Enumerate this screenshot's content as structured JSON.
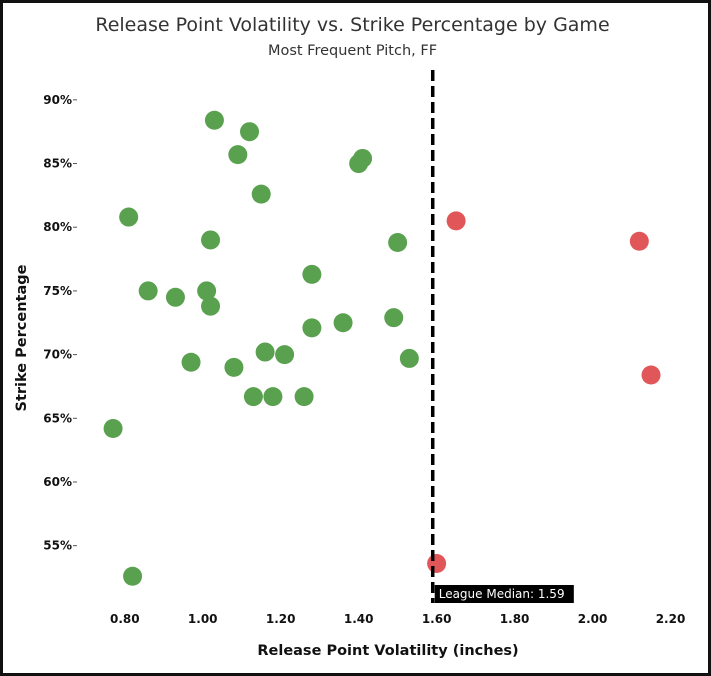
{
  "chart_data": {
    "type": "scatter",
    "title": "Release Point Volatility vs. Strike Percentage by Game",
    "subtitle": "Most Frequent Pitch, FF",
    "xlabel": "Release Point Volatility (inches)",
    "ylabel": "Strike Percentage",
    "xlim": [
      0.68,
      2.25
    ],
    "ylim": [
      50.5,
      92.5
    ],
    "x_ticks": [
      0.8,
      1.0,
      1.2,
      1.4,
      1.6,
      1.8,
      2.0,
      2.2
    ],
    "x_tick_labels": [
      "0.80",
      "1.00",
      "1.20",
      "1.40",
      "1.60",
      "1.80",
      "2.00",
      "2.20"
    ],
    "y_ticks": [
      55,
      60,
      65,
      70,
      75,
      80,
      85,
      90
    ],
    "y_tick_labels": [
      "55%",
      "60%",
      "65%",
      "70%",
      "75%",
      "80%",
      "85%",
      "90%"
    ],
    "grid": false,
    "colors": {
      "below_median": "#59a14f",
      "above_median": "#e15759",
      "median_line": "#000000"
    },
    "reference_line": {
      "x": 1.59,
      "label": "League Median: 1.59"
    },
    "points": [
      {
        "x": 1.03,
        "y": 88.4,
        "group": "below_median"
      },
      {
        "x": 1.12,
        "y": 87.5,
        "group": "below_median"
      },
      {
        "x": 1.09,
        "y": 85.7,
        "group": "below_median"
      },
      {
        "x": 1.41,
        "y": 85.4,
        "group": "below_median"
      },
      {
        "x": 1.4,
        "y": 85.0,
        "group": "below_median"
      },
      {
        "x": 1.15,
        "y": 82.6,
        "group": "below_median"
      },
      {
        "x": 0.81,
        "y": 80.8,
        "group": "below_median"
      },
      {
        "x": 1.02,
        "y": 79.0,
        "group": "below_median"
      },
      {
        "x": 1.5,
        "y": 78.8,
        "group": "below_median"
      },
      {
        "x": 1.28,
        "y": 76.3,
        "group": "below_median"
      },
      {
        "x": 0.86,
        "y": 75.0,
        "group": "below_median"
      },
      {
        "x": 1.01,
        "y": 75.0,
        "group": "below_median"
      },
      {
        "x": 0.93,
        "y": 74.5,
        "group": "below_median"
      },
      {
        "x": 1.02,
        "y": 73.8,
        "group": "below_median"
      },
      {
        "x": 1.49,
        "y": 72.9,
        "group": "below_median"
      },
      {
        "x": 1.36,
        "y": 72.5,
        "group": "below_median"
      },
      {
        "x": 1.28,
        "y": 72.1,
        "group": "below_median"
      },
      {
        "x": 1.16,
        "y": 70.2,
        "group": "below_median"
      },
      {
        "x": 1.21,
        "y": 70.0,
        "group": "below_median"
      },
      {
        "x": 1.53,
        "y": 69.7,
        "group": "below_median"
      },
      {
        "x": 0.97,
        "y": 69.4,
        "group": "below_median"
      },
      {
        "x": 1.08,
        "y": 69.0,
        "group": "below_median"
      },
      {
        "x": 1.13,
        "y": 66.7,
        "group": "below_median"
      },
      {
        "x": 1.18,
        "y": 66.7,
        "group": "below_median"
      },
      {
        "x": 1.26,
        "y": 66.7,
        "group": "below_median"
      },
      {
        "x": 0.77,
        "y": 64.2,
        "group": "below_median"
      },
      {
        "x": 0.82,
        "y": 52.6,
        "group": "below_median"
      },
      {
        "x": 1.65,
        "y": 80.5,
        "group": "above_median"
      },
      {
        "x": 2.12,
        "y": 78.9,
        "group": "above_median"
      },
      {
        "x": 2.15,
        "y": 68.4,
        "group": "above_median"
      },
      {
        "x": 1.6,
        "y": 53.6,
        "group": "above_median"
      }
    ]
  }
}
